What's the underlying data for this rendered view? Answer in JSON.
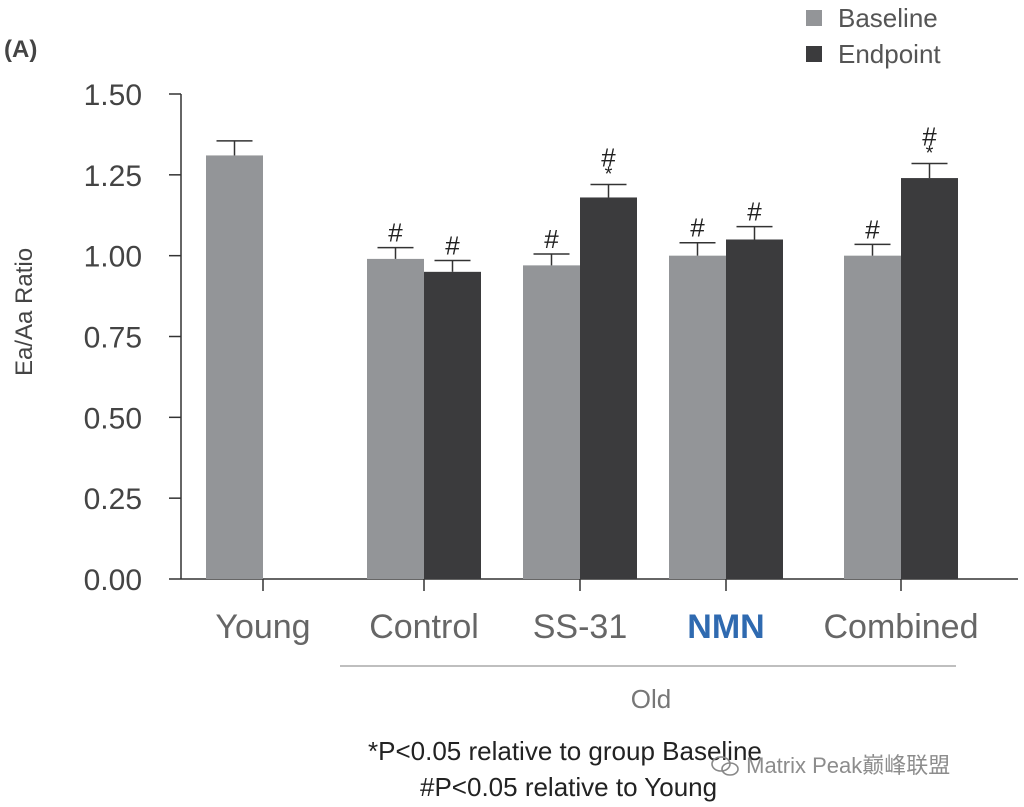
{
  "panel_label": "(A)",
  "chart_data": {
    "type": "bar",
    "ylabel": "Ea/Aa Ratio",
    "ylim": [
      0,
      1.5
    ],
    "yticks": [
      "0.00",
      "0.25",
      "0.50",
      "0.75",
      "1.00",
      "1.25",
      "1.50"
    ],
    "categories": [
      "Young",
      "Control",
      "SS-31",
      "NMN",
      "Combined"
    ],
    "category_colors": [
      "#666666",
      "#666666",
      "#666666",
      "#2f6ab0",
      "#666666"
    ],
    "group_label": "Old",
    "series": [
      {
        "name": "Baseline",
        "color": "#939598",
        "values": [
          1.31,
          0.99,
          0.97,
          1.0,
          1.0
        ],
        "errors": [
          0.045,
          0.035,
          0.035,
          0.04,
          0.035
        ],
        "annotations": [
          "",
          "#",
          "#",
          "#",
          "#"
        ]
      },
      {
        "name": "Endpoint",
        "color": "#3b3b3d",
        "values": [
          null,
          0.95,
          1.18,
          1.05,
          1.24
        ],
        "errors": [
          null,
          0.035,
          0.04,
          0.04,
          0.045
        ],
        "annotations": [
          "",
          "#",
          "#*",
          "#",
          "#*"
        ]
      }
    ],
    "legend": [
      "Baseline",
      "Endpoint"
    ],
    "legend_position": "top-right"
  },
  "footnotes": {
    "star": "*P<0.05 relative to group Baseline",
    "hash": "#P<0.05 relative to Young"
  },
  "watermark": "Matrix Peak巅峰联盟"
}
